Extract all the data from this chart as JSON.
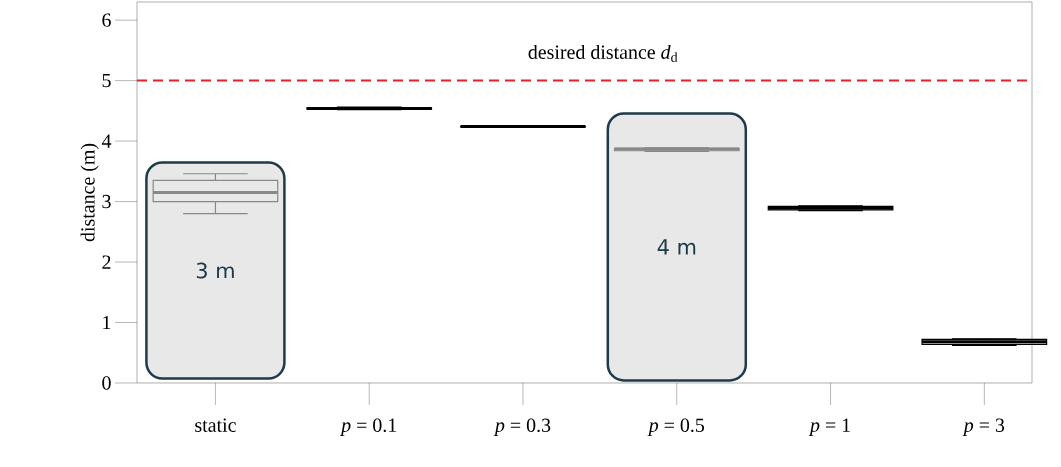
{
  "chart_data": {
    "type": "box",
    "ylabel": "distance (m)",
    "categories": [
      "static",
      "*p* = 0.1",
      "*p* = 0.3",
      "*p* = 0.5",
      "*p* = 1",
      "*p* = 3"
    ],
    "boxes": [
      {
        "low": 2.8,
        "q1": 3.0,
        "median": 3.15,
        "q3": 3.35,
        "high": 3.46
      },
      {
        "low": 4.52,
        "q1": 4.53,
        "median": 4.54,
        "q3": 4.55,
        "high": 4.56
      },
      {
        "low": 4.23,
        "q1": 4.235,
        "median": 4.24,
        "q3": 4.245,
        "high": 4.25
      },
      {
        "low": 3.83,
        "q1": 3.84,
        "median": 3.87,
        "q3": 3.88,
        "high": 3.89
      },
      {
        "low": 2.85,
        "q1": 2.86,
        "median": 2.89,
        "q3": 2.92,
        "high": 2.93
      },
      {
        "low": 0.62,
        "q1": 0.64,
        "median": 0.68,
        "q3": 0.72,
        "high": 0.73
      }
    ],
    "colors": [
      "#888888",
      "#000000",
      "#000000",
      "#888888",
      "#000000",
      "#000000"
    ],
    "ylim": [
      0,
      6.3
    ],
    "yticks": [
      0,
      1,
      2,
      3,
      4,
      5,
      6
    ],
    "ref_lines": [
      {
        "axis": "y",
        "value": 5,
        "label": "desired distance *d*$_{d}$",
        "color": "#e8202a",
        "line_style": "dashed"
      }
    ],
    "annotations": [
      "3 m",
      "4 m"
    ],
    "grid": false
  }
}
